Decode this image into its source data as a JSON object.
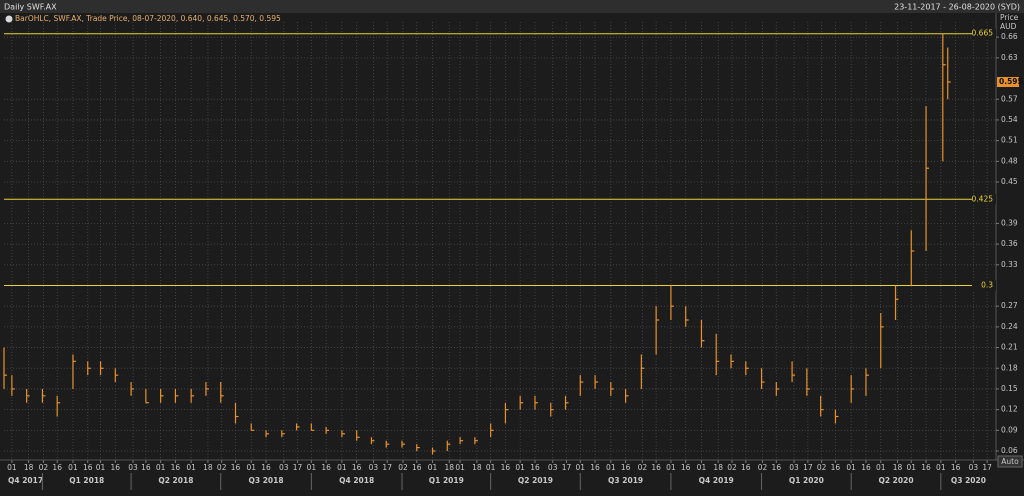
{
  "chart_data": {
    "type": "ohlc",
    "title": "Daily SWF.AX",
    "range_label": "23-11-2017 - 26-08-2020 (SYD)",
    "legend_text": "BarOHLC, SWF.AX, Trade Price, 08-07-2020, 0.640, 0.645, 0.570, 0.595",
    "y_label": "Price",
    "y_unit": "AUD",
    "auto_button": "Auto",
    "color": "#e8912e",
    "xlim": [
      "2017-11-23",
      "2020-08-26"
    ],
    "ylim": [
      0.047,
      0.682
    ],
    "yticks": [
      0.06,
      0.09,
      0.12,
      0.15,
      0.18,
      0.21,
      0.24,
      0.27,
      0.33,
      0.36,
      0.39,
      0.45,
      0.48,
      0.51,
      0.54,
      0.57,
      0.63,
      0.66
    ],
    "grid": true,
    "hlines": [
      0.665,
      0.425,
      0.3
    ],
    "last_price": 0.595,
    "x": [
      "2017-11-23",
      "2017-12-01",
      "2017-12-16",
      "2018-01-01",
      "2018-01-16",
      "2018-02-01",
      "2018-02-16",
      "2018-03-01",
      "2018-03-16",
      "2018-04-01",
      "2018-04-16",
      "2018-05-01",
      "2018-05-16",
      "2018-06-01",
      "2018-06-16",
      "2018-07-01",
      "2018-07-16",
      "2018-08-01",
      "2018-08-16",
      "2018-09-01",
      "2018-09-16",
      "2018-10-01",
      "2018-10-16",
      "2018-11-01",
      "2018-11-16",
      "2018-12-01",
      "2018-12-16",
      "2019-01-01",
      "2019-01-16",
      "2019-02-01",
      "2019-02-16",
      "2019-03-01",
      "2019-03-16",
      "2019-04-01",
      "2019-04-16",
      "2019-05-01",
      "2019-05-16",
      "2019-06-01",
      "2019-06-16",
      "2019-07-01",
      "2019-07-16",
      "2019-08-01",
      "2019-08-16",
      "2019-09-01",
      "2019-09-16",
      "2019-10-01",
      "2019-10-16",
      "2019-11-01",
      "2019-11-16",
      "2019-12-01",
      "2019-12-16",
      "2020-01-01",
      "2020-01-16",
      "2020-02-01",
      "2020-02-16",
      "2020-03-01",
      "2020-03-16",
      "2020-04-01",
      "2020-04-16",
      "2020-05-01",
      "2020-05-16",
      "2020-06-01",
      "2020-06-16",
      "2020-07-03",
      "2020-07-08"
    ],
    "high": [
      0.21,
      0.17,
      0.15,
      0.15,
      0.14,
      0.2,
      0.19,
      0.19,
      0.18,
      0.16,
      0.15,
      0.15,
      0.15,
      0.15,
      0.16,
      0.16,
      0.13,
      0.1,
      0.09,
      0.09,
      0.1,
      0.1,
      0.095,
      0.09,
      0.09,
      0.08,
      0.075,
      0.075,
      0.07,
      0.065,
      0.075,
      0.08,
      0.08,
      0.1,
      0.13,
      0.14,
      0.14,
      0.13,
      0.14,
      0.17,
      0.17,
      0.16,
      0.15,
      0.2,
      0.27,
      0.3,
      0.27,
      0.25,
      0.23,
      0.2,
      0.19,
      0.18,
      0.16,
      0.19,
      0.18,
      0.14,
      0.12,
      0.17,
      0.18,
      0.26,
      0.3,
      0.38,
      0.56,
      0.665,
      0.645
    ],
    "low": [
      0.15,
      0.14,
      0.13,
      0.13,
      0.11,
      0.15,
      0.17,
      0.17,
      0.16,
      0.14,
      0.13,
      0.13,
      0.13,
      0.13,
      0.14,
      0.13,
      0.1,
      0.09,
      0.08,
      0.08,
      0.09,
      0.09,
      0.085,
      0.08,
      0.075,
      0.07,
      0.065,
      0.065,
      0.06,
      0.055,
      0.06,
      0.07,
      0.07,
      0.08,
      0.1,
      0.12,
      0.12,
      0.11,
      0.12,
      0.14,
      0.15,
      0.14,
      0.13,
      0.15,
      0.2,
      0.25,
      0.24,
      0.21,
      0.17,
      0.18,
      0.17,
      0.15,
      0.14,
      0.16,
      0.14,
      0.11,
      0.1,
      0.13,
      0.14,
      0.18,
      0.25,
      0.3,
      0.35,
      0.48,
      0.57
    ],
    "close": [
      0.17,
      0.15,
      0.14,
      0.14,
      0.13,
      0.19,
      0.18,
      0.18,
      0.17,
      0.15,
      0.13,
      0.14,
      0.14,
      0.14,
      0.15,
      0.14,
      0.11,
      0.09,
      0.085,
      0.085,
      0.095,
      0.09,
      0.09,
      0.085,
      0.08,
      0.075,
      0.07,
      0.07,
      0.065,
      0.06,
      0.07,
      0.075,
      0.075,
      0.09,
      0.12,
      0.13,
      0.13,
      0.12,
      0.13,
      0.16,
      0.16,
      0.15,
      0.14,
      0.18,
      0.25,
      0.27,
      0.25,
      0.22,
      0.19,
      0.19,
      0.18,
      0.16,
      0.15,
      0.17,
      0.15,
      0.12,
      0.11,
      0.15,
      0.17,
      0.24,
      0.28,
      0.35,
      0.47,
      0.62,
      0.595
    ],
    "xticks": [
      {
        "value": "2017-12-01",
        "label": "01"
      },
      {
        "value": "2017-12-18",
        "label": "18"
      },
      {
        "value": "2018-01-02",
        "label": "02"
      },
      {
        "value": "2018-01-16",
        "label": "16"
      },
      {
        "value": "2018-02-01",
        "label": "01"
      },
      {
        "value": "2018-02-16",
        "label": "16"
      },
      {
        "value": "2018-03-01",
        "label": "01"
      },
      {
        "value": "2018-03-16",
        "label": "16"
      },
      {
        "value": "2018-04-03",
        "label": "03"
      },
      {
        "value": "2018-04-16",
        "label": "16"
      },
      {
        "value": "2018-05-01",
        "label": "01"
      },
      {
        "value": "2018-05-16",
        "label": "16"
      },
      {
        "value": "2018-06-01",
        "label": "01"
      },
      {
        "value": "2018-06-18",
        "label": "18"
      },
      {
        "value": "2018-07-02",
        "label": "02"
      },
      {
        "value": "2018-07-16",
        "label": "16"
      },
      {
        "value": "2018-08-01",
        "label": "01"
      },
      {
        "value": "2018-08-16",
        "label": "16"
      },
      {
        "value": "2018-09-03",
        "label": "03"
      },
      {
        "value": "2018-09-17",
        "label": "17"
      },
      {
        "value": "2018-10-01",
        "label": "01"
      },
      {
        "value": "2018-10-16",
        "label": "16"
      },
      {
        "value": "2018-11-01",
        "label": "01"
      },
      {
        "value": "2018-11-16",
        "label": "16"
      },
      {
        "value": "2018-12-03",
        "label": "03"
      },
      {
        "value": "2018-12-17",
        "label": "17"
      },
      {
        "value": "2019-01-02",
        "label": "02"
      },
      {
        "value": "2019-01-16",
        "label": "16"
      },
      {
        "value": "2019-02-01",
        "label": "01"
      },
      {
        "value": "2019-02-18",
        "label": "18"
      },
      {
        "value": "2019-03-01",
        "label": "01"
      },
      {
        "value": "2019-03-18",
        "label": "18"
      },
      {
        "value": "2019-04-01",
        "label": "01"
      },
      {
        "value": "2019-04-16",
        "label": "16"
      },
      {
        "value": "2019-05-01",
        "label": "01"
      },
      {
        "value": "2019-05-16",
        "label": "16"
      },
      {
        "value": "2019-06-03",
        "label": "03"
      },
      {
        "value": "2019-06-17",
        "label": "17"
      },
      {
        "value": "2019-07-01",
        "label": "01"
      },
      {
        "value": "2019-07-16",
        "label": "16"
      },
      {
        "value": "2019-08-01",
        "label": "01"
      },
      {
        "value": "2019-08-16",
        "label": "16"
      },
      {
        "value": "2019-09-02",
        "label": "02"
      },
      {
        "value": "2019-09-16",
        "label": "16"
      },
      {
        "value": "2019-10-01",
        "label": "01"
      },
      {
        "value": "2019-10-16",
        "label": "16"
      },
      {
        "value": "2019-11-01",
        "label": "01"
      },
      {
        "value": "2019-11-18",
        "label": "18"
      },
      {
        "value": "2019-12-02",
        "label": "02"
      },
      {
        "value": "2019-12-16",
        "label": "16"
      },
      {
        "value": "2020-01-02",
        "label": "02"
      },
      {
        "value": "2020-01-16",
        "label": "16"
      },
      {
        "value": "2020-02-03",
        "label": "03"
      },
      {
        "value": "2020-02-17",
        "label": "17"
      },
      {
        "value": "2020-03-02",
        "label": "02"
      },
      {
        "value": "2020-03-16",
        "label": "16"
      },
      {
        "value": "2020-04-01",
        "label": "01"
      },
      {
        "value": "2020-04-16",
        "label": "16"
      },
      {
        "value": "2020-05-01",
        "label": "01"
      },
      {
        "value": "2020-05-18",
        "label": "18"
      },
      {
        "value": "2020-06-01",
        "label": "01"
      },
      {
        "value": "2020-06-16",
        "label": "16"
      },
      {
        "value": "2020-07-01",
        "label": "01"
      },
      {
        "value": "2020-07-16",
        "label": "16"
      },
      {
        "value": "2020-08-03",
        "label": "03"
      },
      {
        "value": "2020-08-17",
        "label": "17"
      }
    ],
    "quarters": [
      {
        "value": "2017-10-01",
        "label": "Q4 2017"
      },
      {
        "value": "2018-01-01",
        "label": "Q1 2018"
      },
      {
        "value": "2018-04-01",
        "label": "Q2 2018"
      },
      {
        "value": "2018-07-01",
        "label": "Q3 2018"
      },
      {
        "value": "2018-10-01",
        "label": "Q4 2018"
      },
      {
        "value": "2019-01-01",
        "label": "Q1 2019"
      },
      {
        "value": "2019-04-01",
        "label": "Q2 2019"
      },
      {
        "value": "2019-07-01",
        "label": "Q3 2019"
      },
      {
        "value": "2019-10-01",
        "label": "Q4 2019"
      },
      {
        "value": "2020-01-01",
        "label": "Q1 2020"
      },
      {
        "value": "2020-04-01",
        "label": "Q2 2020"
      },
      {
        "value": "2020-07-01",
        "label": "Q3 2020"
      }
    ]
  }
}
